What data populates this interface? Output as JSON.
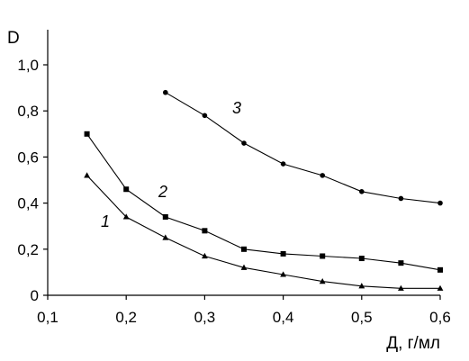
{
  "chart_data": {
    "type": "line",
    "title": "",
    "xlabel": "Д, г/мл",
    "ylabel": "D",
    "xlim": [
      0.1,
      0.6
    ],
    "ylim": [
      0,
      1.0
    ],
    "xticks": [
      "0,1",
      "0,2",
      "0,3",
      "0,4",
      "0,5",
      "0,6"
    ],
    "yticks": [
      "0",
      "0,2",
      "0,4",
      "0,6",
      "0,8",
      "1,0"
    ],
    "grid": false,
    "legend": "none",
    "series": [
      {
        "name": "1",
        "marker": "triangle",
        "x": [
          0.15,
          0.2,
          0.25,
          0.3,
          0.35,
          0.4,
          0.45,
          0.5,
          0.55,
          0.6
        ],
        "y": [
          0.52,
          0.34,
          0.25,
          0.17,
          0.12,
          0.09,
          0.06,
          0.04,
          0.03,
          0.03
        ]
      },
      {
        "name": "2",
        "marker": "square",
        "x": [
          0.15,
          0.2,
          0.25,
          0.3,
          0.35,
          0.4,
          0.45,
          0.5,
          0.55,
          0.6
        ],
        "y": [
          0.7,
          0.46,
          0.34,
          0.28,
          0.2,
          0.18,
          0.17,
          0.16,
          0.14,
          0.11
        ]
      },
      {
        "name": "3",
        "marker": "circle",
        "x": [
          0.25,
          0.3,
          0.35,
          0.4,
          0.45,
          0.5,
          0.55,
          0.6
        ],
        "y": [
          0.88,
          0.78,
          0.66,
          0.57,
          0.52,
          0.45,
          0.42,
          0.4
        ]
      }
    ]
  }
}
